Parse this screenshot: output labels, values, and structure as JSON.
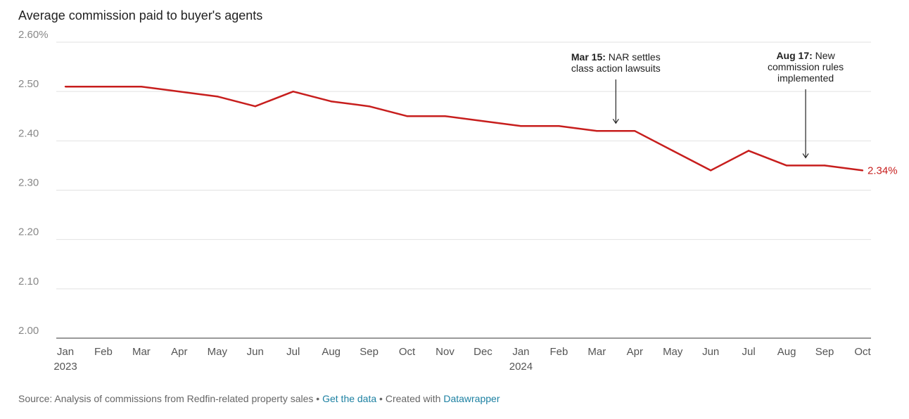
{
  "title": "Average commission paid to buyer's agents",
  "chart_data": {
    "type": "line",
    "title": "Average commission paid to buyer's agents",
    "ylim": [
      2.0,
      2.6
    ],
    "y_ticks": [
      {
        "value": 2.0,
        "label": "2.00"
      },
      {
        "value": 2.1,
        "label": "2.10"
      },
      {
        "value": 2.2,
        "label": "2.20"
      },
      {
        "value": 2.3,
        "label": "2.30"
      },
      {
        "value": 2.4,
        "label": "2.40"
      },
      {
        "value": 2.5,
        "label": "2.50"
      },
      {
        "value": 2.6,
        "label": "2.60%"
      }
    ],
    "categories": [
      "Jan",
      "Feb",
      "Mar",
      "Apr",
      "May",
      "Jun",
      "Jul",
      "Aug",
      "Sep",
      "Oct",
      "Nov",
      "Dec",
      "Jan",
      "Feb",
      "Mar",
      "Apr",
      "May",
      "Jun",
      "Jul",
      "Aug",
      "Sep",
      "Oct"
    ],
    "year_labels": [
      {
        "index": 0,
        "label": "2023"
      },
      {
        "index": 12,
        "label": "2024"
      }
    ],
    "series": [
      {
        "name": "Average commission",
        "color": "#c71e1d",
        "values": [
          2.51,
          2.51,
          2.51,
          2.5,
          2.49,
          2.47,
          2.5,
          2.48,
          2.47,
          2.45,
          2.45,
          2.44,
          2.43,
          2.43,
          2.42,
          2.42,
          2.38,
          2.34,
          2.38,
          2.35,
          2.35,
          2.34
        ],
        "end_label": "2.34%"
      }
    ],
    "annotations": [
      {
        "bold": "Mar 15:",
        "lines": [
          "NAR settles",
          "class action lawsuits"
        ],
        "x_index": 14.5,
        "y_value": 2.42
      },
      {
        "bold": "Aug 17:",
        "lines": [
          "New",
          "commission rules",
          "implemented"
        ],
        "x_index": 19.5,
        "y_value": 2.35
      }
    ]
  },
  "footer": {
    "source": "Source: Analysis of commissions from Redfin-related property sales",
    "sep1": " • ",
    "get_data": "Get the data",
    "sep2": " • Created with ",
    "created_with": "Datawrapper"
  }
}
